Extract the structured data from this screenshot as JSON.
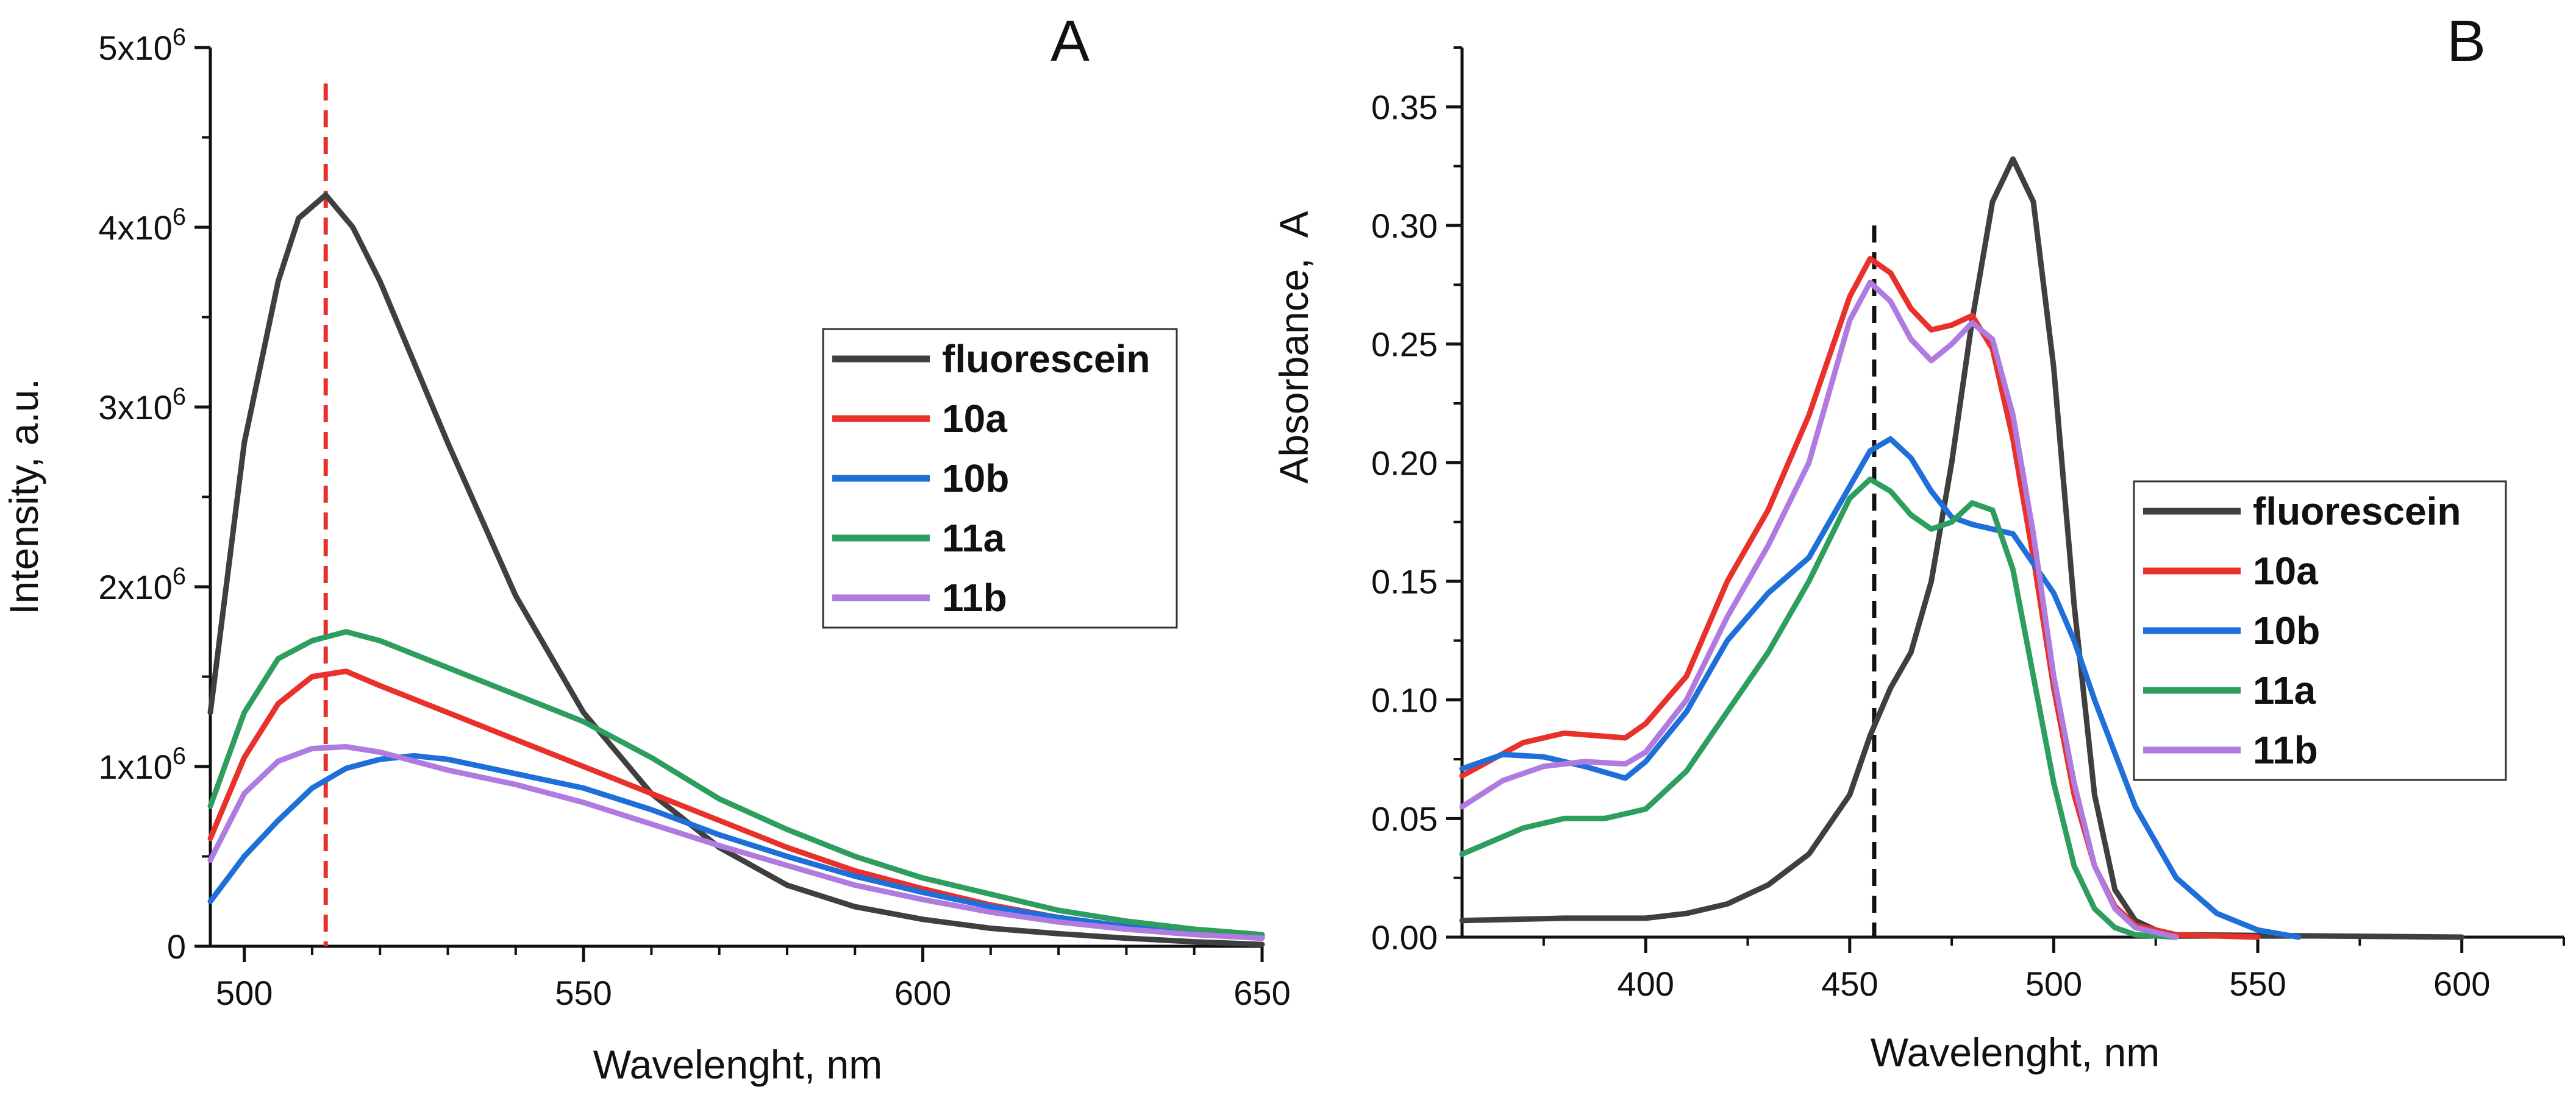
{
  "chart_data": [
    {
      "type": "line",
      "panel_label": "A",
      "xlabel": "Wavelenght, nm",
      "ylabel": "Intensity, a.u.",
      "xlim": [
        495,
        650
      ],
      "ylim": [
        0,
        5000000
      ],
      "xticks": [
        {
          "value": 500,
          "label": "500"
        },
        {
          "value": 550,
          "label": "550"
        },
        {
          "value": 600,
          "label": "600"
        },
        {
          "value": 650,
          "label": "650"
        }
      ],
      "yticks": [
        {
          "value": 0,
          "base": "0",
          "exp": ""
        },
        {
          "value": 1000000,
          "base": "1x10",
          "exp": "6"
        },
        {
          "value": 2000000,
          "base": "2x10",
          "exp": "6"
        },
        {
          "value": 3000000,
          "base": "3x10",
          "exp": "6"
        },
        {
          "value": 4000000,
          "base": "4x10",
          "exp": "6"
        },
        {
          "value": 5000000,
          "base": "5x10",
          "exp": "6"
        }
      ],
      "reference_line": {
        "x": 512,
        "color": "#e8312b",
        "style": "dashed"
      },
      "legend": {
        "position": "center-right"
      },
      "series": [
        {
          "name": "fluorescein",
          "color": "#3f3f3f",
          "x": [
            495,
            500,
            505,
            508,
            512,
            516,
            520,
            530,
            540,
            550,
            560,
            570,
            580,
            590,
            600,
            610,
            620,
            630,
            640,
            650
          ],
          "y": [
            1300000,
            2800000,
            3700000,
            4050000,
            4180000,
            4000000,
            3700000,
            2800000,
            1950000,
            1300000,
            850000,
            550000,
            340000,
            220000,
            150000,
            100000,
            70000,
            45000,
            25000,
            10000
          ]
        },
        {
          "name": "10a",
          "color": "#e8312b",
          "x": [
            495,
            500,
            505,
            510,
            515,
            520,
            530,
            540,
            550,
            560,
            570,
            580,
            590,
            600,
            610,
            620,
            630,
            640,
            650
          ],
          "y": [
            600000,
            1050000,
            1350000,
            1500000,
            1530000,
            1450000,
            1300000,
            1150000,
            1000000,
            850000,
            700000,
            550000,
            420000,
            320000,
            230000,
            160000,
            110000,
            70000,
            50000
          ]
        },
        {
          "name": "10b",
          "color": "#1e6fd9",
          "x": [
            495,
            500,
            505,
            510,
            515,
            520,
            525,
            530,
            540,
            550,
            560,
            570,
            580,
            590,
            600,
            610,
            620,
            630,
            640,
            650
          ],
          "y": [
            250000,
            500000,
            700000,
            880000,
            990000,
            1040000,
            1060000,
            1040000,
            960000,
            880000,
            760000,
            620000,
            500000,
            390000,
            300000,
            220000,
            160000,
            110000,
            75000,
            50000
          ]
        },
        {
          "name": "11a",
          "color": "#2e9e5f",
          "x": [
            495,
            500,
            505,
            510,
            515,
            520,
            530,
            540,
            550,
            560,
            570,
            580,
            590,
            600,
            610,
            620,
            630,
            640,
            650
          ],
          "y": [
            780000,
            1300000,
            1600000,
            1700000,
            1750000,
            1700000,
            1550000,
            1400000,
            1250000,
            1050000,
            820000,
            650000,
            500000,
            380000,
            290000,
            200000,
            140000,
            95000,
            65000
          ]
        },
        {
          "name": "11b",
          "color": "#b07be0",
          "x": [
            495,
            500,
            505,
            510,
            515,
            520,
            530,
            540,
            550,
            560,
            570,
            580,
            590,
            600,
            610,
            620,
            630,
            640,
            650
          ],
          "y": [
            480000,
            850000,
            1030000,
            1100000,
            1110000,
            1080000,
            980000,
            900000,
            800000,
            680000,
            560000,
            450000,
            340000,
            260000,
            190000,
            135000,
            95000,
            65000,
            45000
          ]
        }
      ]
    },
    {
      "type": "line",
      "panel_label": "B",
      "xlabel": "Wavelenght, nm",
      "ylabel": "Absorbance,  A",
      "xlim": [
        355,
        625
      ],
      "ylim": [
        0,
        0.375
      ],
      "xticks": [
        {
          "value": 400,
          "label": "400"
        },
        {
          "value": 450,
          "label": "450"
        },
        {
          "value": 500,
          "label": "500"
        },
        {
          "value": 550,
          "label": "550"
        },
        {
          "value": 600,
          "label": "600"
        }
      ],
      "yticks": [
        {
          "value": 0.0,
          "base": "0.00",
          "exp": ""
        },
        {
          "value": 0.05,
          "base": "0.05",
          "exp": ""
        },
        {
          "value": 0.1,
          "base": "0.10",
          "exp": ""
        },
        {
          "value": 0.15,
          "base": "0.15",
          "exp": ""
        },
        {
          "value": 0.2,
          "base": "0.20",
          "exp": ""
        },
        {
          "value": 0.25,
          "base": "0.25",
          "exp": ""
        },
        {
          "value": 0.3,
          "base": "0.30",
          "exp": ""
        },
        {
          "value": 0.35,
          "base": "0.35",
          "exp": ""
        }
      ],
      "reference_line": {
        "x": 456,
        "y_max": 0.3,
        "color": "#111111",
        "style": "dashed"
      },
      "legend": {
        "position": "center-right"
      },
      "series": [
        {
          "name": "fluorescein",
          "color": "#3f3f3f",
          "x": [
            355,
            380,
            400,
            410,
            420,
            430,
            440,
            450,
            455,
            460,
            465,
            470,
            475,
            480,
            485,
            490,
            495,
            500,
            505,
            510,
            515,
            520,
            525,
            530,
            600
          ],
          "y": [
            0.007,
            0.008,
            0.008,
            0.01,
            0.014,
            0.022,
            0.035,
            0.06,
            0.085,
            0.105,
            0.12,
            0.15,
            0.2,
            0.26,
            0.31,
            0.328,
            0.31,
            0.24,
            0.14,
            0.06,
            0.02,
            0.007,
            0.003,
            0.001,
            0.0
          ]
        },
        {
          "name": "10a",
          "color": "#e8312b",
          "x": [
            355,
            370,
            380,
            395,
            400,
            410,
            420,
            430,
            440,
            450,
            455,
            460,
            465,
            470,
            475,
            480,
            485,
            490,
            495,
            500,
            505,
            510,
            515,
            520,
            530,
            550
          ],
          "y": [
            0.068,
            0.082,
            0.086,
            0.084,
            0.09,
            0.11,
            0.15,
            0.18,
            0.22,
            0.27,
            0.286,
            0.28,
            0.265,
            0.256,
            0.258,
            0.262,
            0.248,
            0.21,
            0.16,
            0.105,
            0.06,
            0.03,
            0.013,
            0.005,
            0.001,
            0.0
          ]
        },
        {
          "name": "10b",
          "color": "#1e6fd9",
          "x": [
            355,
            365,
            375,
            385,
            395,
            400,
            410,
            420,
            430,
            440,
            450,
            455,
            460,
            465,
            470,
            475,
            480,
            490,
            500,
            505,
            510,
            520,
            530,
            540,
            550,
            560
          ],
          "y": [
            0.071,
            0.077,
            0.076,
            0.072,
            0.067,
            0.074,
            0.095,
            0.125,
            0.145,
            0.16,
            0.19,
            0.205,
            0.21,
            0.202,
            0.188,
            0.177,
            0.174,
            0.17,
            0.145,
            0.125,
            0.1,
            0.055,
            0.025,
            0.01,
            0.003,
            0.0
          ]
        },
        {
          "name": "11a",
          "color": "#2e9e5f",
          "x": [
            355,
            370,
            380,
            390,
            400,
            410,
            420,
            430,
            440,
            450,
            455,
            460,
            465,
            470,
            475,
            480,
            485,
            490,
            495,
            500,
            505,
            510,
            515,
            520,
            530
          ],
          "y": [
            0.035,
            0.046,
            0.05,
            0.05,
            0.054,
            0.07,
            0.095,
            0.12,
            0.15,
            0.185,
            0.193,
            0.188,
            0.178,
            0.172,
            0.175,
            0.183,
            0.18,
            0.155,
            0.11,
            0.065,
            0.03,
            0.012,
            0.004,
            0.001,
            0.0
          ]
        },
        {
          "name": "11b",
          "color": "#b07be0",
          "x": [
            355,
            365,
            375,
            385,
            395,
            400,
            410,
            420,
            430,
            440,
            450,
            455,
            460,
            465,
            470,
            475,
            480,
            485,
            490,
            495,
            500,
            505,
            510,
            515,
            520,
            530
          ],
          "y": [
            0.055,
            0.066,
            0.072,
            0.074,
            0.073,
            0.078,
            0.1,
            0.135,
            0.165,
            0.2,
            0.26,
            0.276,
            0.268,
            0.252,
            0.243,
            0.25,
            0.259,
            0.252,
            0.22,
            0.17,
            0.11,
            0.065,
            0.03,
            0.012,
            0.004,
            0.0
          ]
        }
      ]
    }
  ]
}
